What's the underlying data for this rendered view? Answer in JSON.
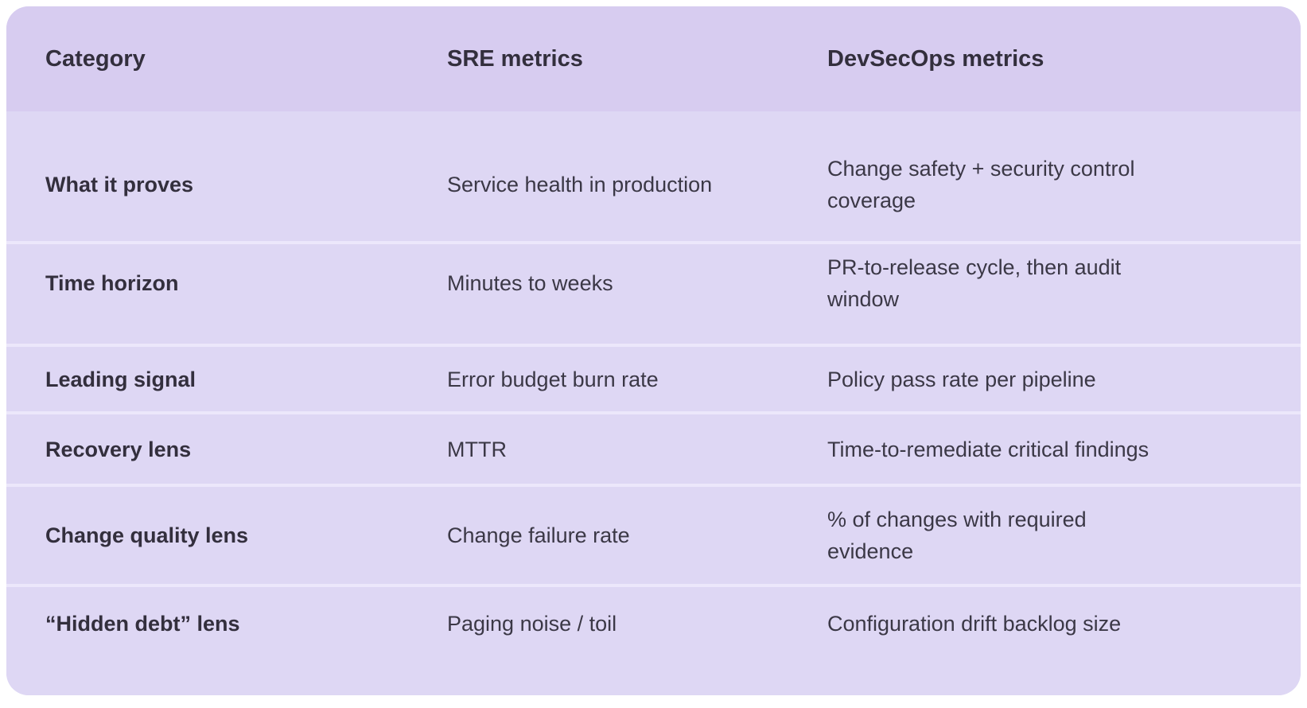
{
  "theme": {
    "page-bg": "#ffffff",
    "header-bg": "#d7ccf0",
    "row-bg": "#ded7f4",
    "separator": "#ece7fb",
    "text-strong": "#332f3d",
    "text-body": "#3b3846"
  },
  "table": {
    "columns": [
      "Category",
      "SRE metrics",
      "DevSecOps metrics"
    ],
    "rows": [
      {
        "category": "What it proves",
        "sre": "Service health in production",
        "devsecops": "Change safety + security control\ncoverage"
      },
      {
        "category": "Time horizon",
        "sre": "Minutes to weeks",
        "devsecops": "PR-to-release cycle, then audit\nwindow"
      },
      {
        "category": "Leading signal",
        "sre": "Error budget burn rate",
        "devsecops": "Policy pass rate per pipeline"
      },
      {
        "category": "Recovery lens",
        "sre": "MTTR",
        "devsecops": "Time-to-remediate critical findings"
      },
      {
        "category": "Change quality lens",
        "sre": "Change failure rate",
        "devsecops": "% of changes with required\nevidence"
      },
      {
        "category": "“Hidden debt” lens",
        "sre": "Paging noise / toil",
        "devsecops": "Configuration drift backlog size"
      }
    ]
  }
}
